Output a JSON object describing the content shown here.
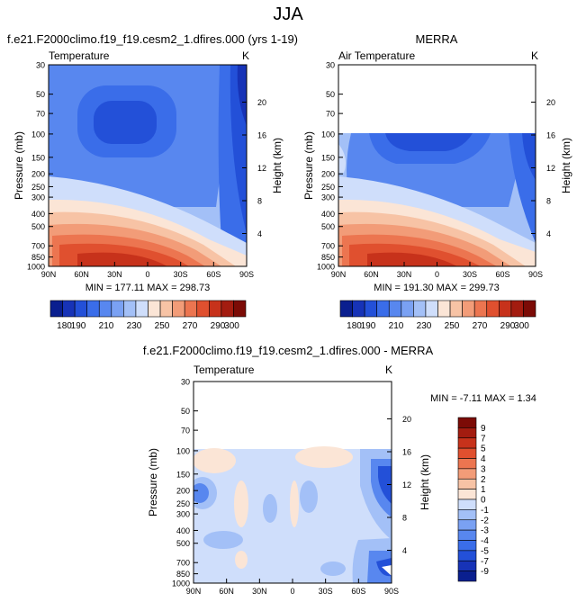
{
  "figure": {
    "season": "JJA",
    "units": "K",
    "ylabel_left": "Pressure (mb)",
    "ylabel_right": "Height (km)",
    "pressure_ticks": [
      "30",
      "50",
      "70",
      "100",
      "150",
      "200",
      "250",
      "300",
      "400",
      "500",
      "700",
      "850",
      "1000"
    ],
    "height_ticks": [
      "4",
      "8",
      "12",
      "16",
      "20"
    ],
    "lat_ticks": [
      "90N",
      "60N",
      "30N",
      "0",
      "30S",
      "60S",
      "90S"
    ]
  },
  "panels": {
    "model": {
      "title": "f.e21.F2000climo.f19_f19.cesm2_1.dfires.000 (yrs 1-19)",
      "field_label": "Temperature",
      "units": "K",
      "stats": "MIN = 177.11  MAX = 298.73"
    },
    "obs": {
      "title": "MERRA",
      "field_label": "Air Temperature",
      "units": "K",
      "stats": "MIN = 191.30  MAX = 299.73"
    },
    "diff": {
      "title": "f.e21.F2000climo.f19_f19.cesm2_1.dfires.000 - MERRA",
      "field_label": "Temperature",
      "units": "K",
      "stats": "MIN =  -7.11  MAX =   1.34"
    }
  },
  "colorbars": {
    "temperature": {
      "levels": [
        180,
        190,
        200,
        210,
        220,
        230,
        240,
        250,
        260,
        270,
        280,
        290,
        300
      ],
      "labels": [
        "180",
        "190",
        "210",
        "230",
        "250",
        "270",
        "290",
        "300"
      ],
      "colors": [
        "#0a1f8f",
        "#1733b7",
        "#2350d8",
        "#3a6de9",
        "#5887ef",
        "#7aa1f3",
        "#a3c0f7",
        "#cfdefb",
        "#fbe5d6",
        "#f7c3a5",
        "#f29c78",
        "#ec7550",
        "#e0502f",
        "#c7321b",
        "#a31c10",
        "#7c0b06"
      ]
    },
    "difference": {
      "labels": [
        "9",
        "7",
        "5",
        "4",
        "3",
        "2",
        "1",
        "0",
        "-1",
        "-2",
        "-3",
        "-4",
        "-5",
        "-7",
        "-9"
      ],
      "colors": [
        "#7c0b06",
        "#a31c10",
        "#c7321b",
        "#e0502f",
        "#ec7550",
        "#f29c78",
        "#f7c3a5",
        "#fbe5d6",
        "#cfdefb",
        "#a3c0f7",
        "#7aa1f3",
        "#5887ef",
        "#3a6de9",
        "#2350d8",
        "#1733b7",
        "#0a1f8f"
      ]
    }
  },
  "chart_data": [
    {
      "type": "heatmap",
      "id": "model",
      "title": "f.e21.F2000climo.f19_f19.cesm2_1.dfires.000 (yrs 1-19)",
      "field": "Temperature",
      "units": "K",
      "x": [
        "90N",
        "60N",
        "30N",
        "0",
        "30S",
        "60S",
        "90S"
      ],
      "y_pressure_mb": [
        30,
        50,
        70,
        100,
        150,
        200,
        250,
        300,
        400,
        500,
        700,
        850,
        1000
      ],
      "xlabel": "",
      "ylabel": "Pressure (mb)",
      "ylabel_right": "Height (km)",
      "min": 177.11,
      "max": 298.73
    },
    {
      "type": "heatmap",
      "id": "obs",
      "title": "MERRA",
      "field": "Air Temperature",
      "units": "K",
      "x": [
        "90N",
        "60N",
        "30N",
        "0",
        "30S",
        "60S",
        "90S"
      ],
      "y_pressure_mb": [
        30,
        50,
        70,
        100,
        150,
        200,
        250,
        300,
        400,
        500,
        700,
        850,
        1000
      ],
      "ylabel": "Pressure (mb)",
      "ylabel_right": "Height (km)",
      "min": 191.3,
      "max": 299.73
    },
    {
      "type": "heatmap",
      "id": "diff",
      "title": "f.e21.F2000climo.f19_f19.cesm2_1.dfires.000 - MERRA",
      "field": "Temperature",
      "units": "K",
      "x": [
        "90N",
        "60N",
        "30N",
        "0",
        "30S",
        "60S",
        "90S"
      ],
      "y_pressure_mb": [
        30,
        50,
        70,
        100,
        150,
        200,
        250,
        300,
        400,
        500,
        700,
        850,
        1000
      ],
      "ylabel": "Pressure (mb)",
      "ylabel_right": "Height (km)",
      "min": -7.11,
      "max": 1.34
    }
  ]
}
